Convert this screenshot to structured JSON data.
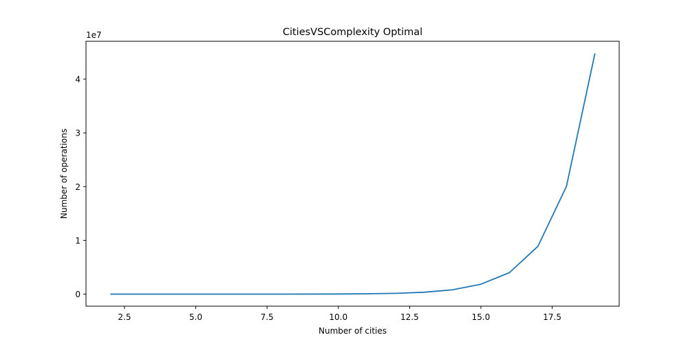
{
  "chart_data": {
    "type": "line",
    "title": "CitiesVSComplexity Optimal",
    "xlabel": "Number of cities",
    "ylabel": "Number of operations",
    "y_offset_label": "1e7",
    "xlim": [
      1.15,
      19.85
    ],
    "ylim": [
      -2240000,
      47040000
    ],
    "x_ticks": [
      2.5,
      5.0,
      7.5,
      10.0,
      12.5,
      15.0,
      17.5
    ],
    "x_tick_labels": [
      "2.5",
      "5.0",
      "7.5",
      "10.0",
      "12.5",
      "15.0",
      "17.5"
    ],
    "y_ticks": [
      0,
      10000000,
      20000000,
      30000000,
      40000000
    ],
    "y_tick_labels": [
      "0",
      "1",
      "2",
      "3",
      "4"
    ],
    "grid": false,
    "series": [
      {
        "color": "#1f77b4",
        "x": [
          2,
          3,
          4,
          5,
          6,
          7,
          8,
          9,
          10,
          11,
          12,
          13,
          14,
          15,
          16,
          17,
          18,
          19
        ],
        "y": [
          4,
          18,
          64,
          200,
          576,
          1568,
          4096,
          10368,
          25600,
          61952,
          147456,
          346112,
          802816,
          1843200,
          4000000,
          8900000,
          20050000,
          44800000
        ]
      }
    ]
  }
}
